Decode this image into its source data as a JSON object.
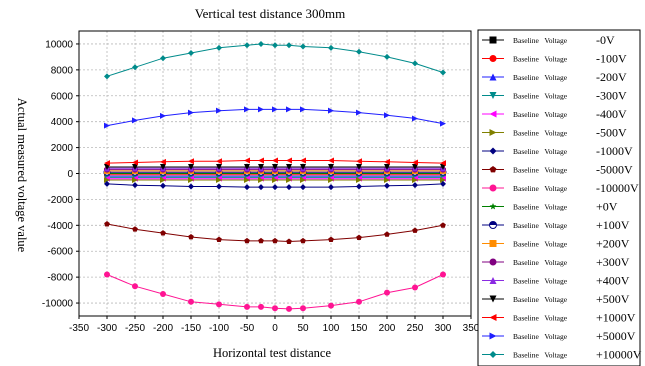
{
  "chart_data": {
    "type": "line",
    "title": "Vertical  test  distance  300mm",
    "xlabel": "Horizontal test distance",
    "ylabel": "Actual measured voltage value",
    "xlim": [
      -350,
      350
    ],
    "ylim": [
      -11000,
      11000
    ],
    "xticks": [
      "-350",
      "-300",
      "-250",
      "-200",
      "-150",
      "-100",
      "-50",
      "0",
      "50",
      "100",
      "150",
      "200",
      "250",
      "300",
      "350"
    ],
    "yticks": [
      "10000",
      "8000",
      "6000",
      "4000",
      "2000",
      "0",
      "-2000",
      "-4000",
      "-6000",
      "-8000",
      "-10000"
    ],
    "grid": true,
    "legend_position": "right",
    "x": [
      -300,
      -250,
      -200,
      -150,
      -100,
      -50,
      -25,
      0,
      25,
      50,
      100,
      150,
      200,
      250,
      300
    ],
    "series": [
      {
        "name": "Baseline   Voltage",
        "legend_value": "-0V",
        "color": "#000000",
        "marker": "square",
        "values": [
          0,
          0,
          0,
          0,
          0,
          0,
          0,
          0,
          0,
          0,
          0,
          0,
          0,
          0,
          0
        ]
      },
      {
        "name": "Baseline   Voltage",
        "legend_value": "-100V",
        "color": "#ff0000",
        "marker": "circle",
        "values": [
          -100,
          -100,
          -100,
          -100,
          -100,
          -100,
          -100,
          -100,
          -100,
          -100,
          -100,
          -100,
          -100,
          -100,
          -100
        ]
      },
      {
        "name": "Baseline   Voltage",
        "legend_value": "-200V",
        "color": "#1f1fff",
        "marker": "triangle-up",
        "values": [
          -200,
          -200,
          -200,
          -200,
          -200,
          -200,
          -200,
          -200,
          -200,
          -200,
          -200,
          -200,
          -200,
          -200,
          -200
        ]
      },
      {
        "name": "Baseline   Voltage",
        "legend_value": "-300V",
        "color": "#008b8b",
        "marker": "triangle-down",
        "values": [
          -300,
          -300,
          -300,
          -300,
          -300,
          -300,
          -300,
          -300,
          -300,
          -300,
          -300,
          -300,
          -300,
          -300,
          -300
        ]
      },
      {
        "name": "Baseline   Voltage",
        "legend_value": "-400V",
        "color": "#ff00ff",
        "marker": "triangle-left",
        "values": [
          -400,
          -400,
          -400,
          -400,
          -400,
          -400,
          -400,
          -400,
          -400,
          -400,
          -400,
          -400,
          -400,
          -400,
          -400
        ]
      },
      {
        "name": "Baseline   Voltage",
        "legend_value": "-500V",
        "color": "#808000",
        "marker": "triangle-right",
        "values": [
          -500,
          -500,
          -500,
          -500,
          -500,
          -500,
          -500,
          -500,
          -500,
          -500,
          -500,
          -500,
          -500,
          -500,
          -500
        ]
      },
      {
        "name": "Baseline   Voltage",
        "legend_value": "-1000V",
        "color": "#000080",
        "marker": "diamond",
        "values": [
          -800,
          -900,
          -950,
          -1000,
          -1000,
          -1050,
          -1050,
          -1050,
          -1050,
          -1050,
          -1050,
          -1000,
          -950,
          -900,
          -800
        ]
      },
      {
        "name": "Baseline   Voltage",
        "legend_value": "-5000V",
        "color": "#800000",
        "marker": "pentagon",
        "values": [
          -3900,
          -4300,
          -4600,
          -4900,
          -5100,
          -5200,
          -5200,
          -5200,
          -5250,
          -5200,
          -5100,
          -4950,
          -4700,
          -4400,
          -4000
        ]
      },
      {
        "name": "Baseline   Voltage",
        "legend_value": "-10000V",
        "color": "#ff1493",
        "marker": "circle",
        "values": [
          -7800,
          -8700,
          -9300,
          -9900,
          -10100,
          -10300,
          -10300,
          -10400,
          -10450,
          -10400,
          -10200,
          -9900,
          -9200,
          -8800,
          -7800
        ]
      },
      {
        "name": "Baseline   Voltage",
        "legend_value": "+0V",
        "color": "#008000",
        "marker": "star",
        "values": [
          0,
          0,
          0,
          0,
          0,
          0,
          0,
          0,
          0,
          0,
          0,
          0,
          0,
          0,
          0
        ]
      },
      {
        "name": "Baseline   Voltage",
        "legend_value": "+100V",
        "color": "#000080",
        "marker": "circle-half",
        "values": [
          100,
          100,
          100,
          100,
          100,
          100,
          100,
          100,
          100,
          100,
          100,
          100,
          100,
          100,
          100
        ]
      },
      {
        "name": "Baseline   Voltage",
        "legend_value": "+200V",
        "color": "#ff8c00",
        "marker": "square",
        "values": [
          200,
          200,
          200,
          200,
          200,
          200,
          200,
          200,
          200,
          200,
          200,
          200,
          200,
          200,
          200
        ]
      },
      {
        "name": "Baseline   Voltage",
        "legend_value": "+300V",
        "color": "#800080",
        "marker": "circle",
        "values": [
          300,
          300,
          300,
          300,
          300,
          300,
          300,
          300,
          300,
          300,
          300,
          300,
          300,
          300,
          300
        ]
      },
      {
        "name": "Baseline   Voltage",
        "legend_value": "+400V",
        "color": "#8a2be2",
        "marker": "triangle-up",
        "values": [
          400,
          400,
          400,
          400,
          400,
          400,
          400,
          400,
          400,
          400,
          400,
          400,
          400,
          400,
          400
        ]
      },
      {
        "name": "Baseline   Voltage",
        "legend_value": "+500V",
        "color": "#000000",
        "marker": "triangle-down",
        "values": [
          500,
          500,
          500,
          500,
          500,
          500,
          500,
          500,
          500,
          500,
          500,
          500,
          500,
          500,
          500
        ]
      },
      {
        "name": "Baseline   Voltage",
        "legend_value": "+1000V",
        "color": "#ff0000",
        "marker": "triangle-left",
        "values": [
          800,
          850,
          900,
          950,
          950,
          1000,
          1000,
          1000,
          1000,
          1000,
          1000,
          950,
          900,
          850,
          800
        ]
      },
      {
        "name": "Baseline   Voltage",
        "legend_value": "+5000V",
        "color": "#1f1fff",
        "marker": "triangle-right",
        "values": [
          3700,
          4100,
          4450,
          4700,
          4850,
          4950,
          4950,
          4950,
          4950,
          4950,
          4850,
          4700,
          4500,
          4250,
          3850
        ]
      },
      {
        "name": "Baseline   Voltage",
        "legend_value": "+10000V",
        "color": "#008b8b",
        "marker": "diamond",
        "values": [
          7500,
          8200,
          8900,
          9300,
          9700,
          9900,
          10000,
          9900,
          9900,
          9800,
          9700,
          9400,
          9000,
          8500,
          7800
        ]
      }
    ]
  }
}
